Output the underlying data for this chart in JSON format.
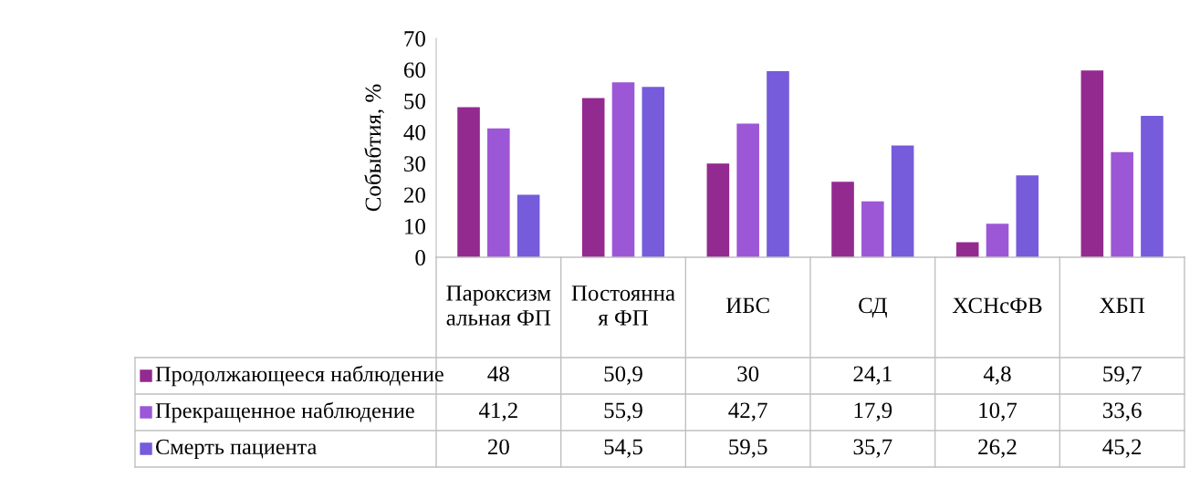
{
  "chart_data": {
    "type": "bar",
    "ylabel": "Собыбтия, %",
    "categories": [
      "Пароксизмальная ФП",
      "Постоянная ФП",
      "ИБС",
      "СД",
      "ХСНсФВ",
      "ХБП"
    ],
    "ylim": [
      0,
      70
    ],
    "yticks": [
      0,
      10,
      20,
      30,
      40,
      50,
      60,
      70
    ],
    "grid": false,
    "legend": "bottom",
    "series": [
      {
        "name": "Продолжающееся наблюдение",
        "color": "#932a8f",
        "values": [
          48,
          50.9,
          30,
          24.1,
          4.8,
          59.7
        ],
        "value_labels": [
          "48",
          "50,9",
          "30",
          "24,1",
          "4,8",
          "59,7"
        ]
      },
      {
        "name": "Прекращенное наблюдение",
        "color": "#9c57d6",
        "values": [
          41.2,
          55.9,
          42.7,
          17.9,
          10.7,
          33.6
        ],
        "value_labels": [
          "41,2",
          "55,9",
          "42,7",
          "17,9",
          "10,7",
          "33,6"
        ]
      },
      {
        "name": "Смерть пациента",
        "color": "#765bdb",
        "values": [
          20,
          54.5,
          59.5,
          35.7,
          26.2,
          45.2
        ],
        "value_labels": [
          "20",
          "54,5",
          "59,5",
          "35,7",
          "26,2",
          "45,2"
        ]
      }
    ]
  }
}
